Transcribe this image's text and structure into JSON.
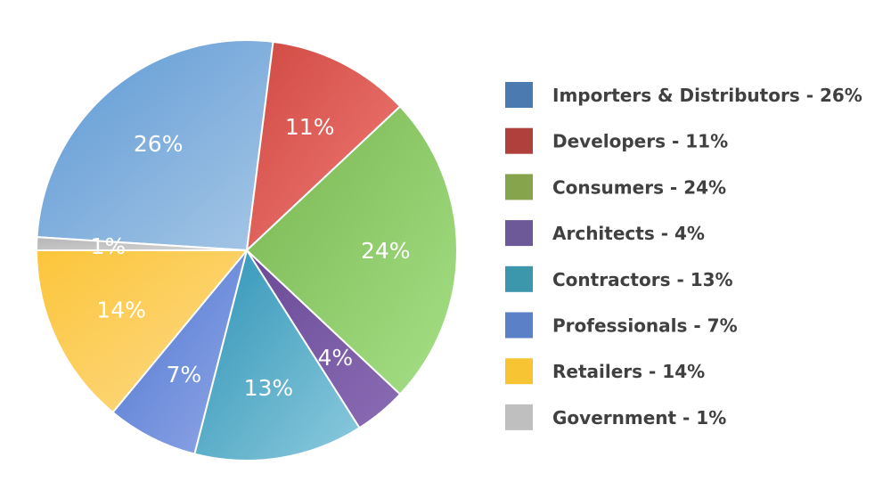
{
  "chart_data": {
    "type": "pie",
    "legend_position": "right",
    "slices": [
      {
        "label": "Importers & Distributors",
        "value": 26,
        "display": "26%",
        "legend_text": "Importers & Distributors - 26%",
        "color": "#4a7ab0",
        "fill_from": "#5d98d4",
        "fill_to": "#a6c7e6"
      },
      {
        "label": "Developers",
        "value": 11,
        "display": "11%",
        "legend_text": "Developers - 11%",
        "color": "#b0403c",
        "fill_from": "#cf4a42",
        "fill_to": "#f27a76"
      },
      {
        "label": "Consumers",
        "value": 24,
        "display": "24%",
        "legend_text": "Consumers - 24%",
        "color": "#86a44c",
        "fill_from": "#78b54e",
        "fill_to": "#a6e088"
      },
      {
        "label": "Architects",
        "value": 4,
        "display": "4%",
        "legend_text": "Architects - 4%",
        "color": "#6d5898",
        "fill_from": "#6a4a96",
        "fill_to": "#8a6cb4"
      },
      {
        "label": "Contractors",
        "value": 13,
        "display": "13%",
        "legend_text": "Contractors - 13%",
        "color": "#3c97ad",
        "fill_from": "#2e93b6",
        "fill_to": "#8ccadd"
      },
      {
        "label": "Professionals",
        "value": 7,
        "display": "7%",
        "legend_text": "Professionals - 7%",
        "color": "#5a80c8",
        "fill_from": "#4d77cf",
        "fill_to": "#93a7e8"
      },
      {
        "label": "Retailers",
        "value": 14,
        "display": "14%",
        "legend_text": "Retailers - 14%",
        "color": "#f7c433",
        "fill_from": "#fcc63a",
        "fill_to": "#fcd98a"
      },
      {
        "label": "Government",
        "value": 1,
        "display": "1%",
        "legend_text": "Government - 1%",
        "color": "#bfbfbf",
        "fill_from": "#b5b5b5",
        "fill_to": "#d4d4d4"
      }
    ]
  }
}
